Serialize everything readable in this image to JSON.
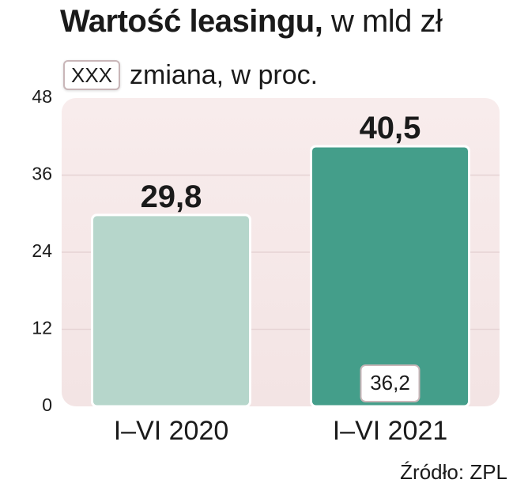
{
  "header": {
    "title_bold": "Wartość leasingu,",
    "title_rest": "w mld zł",
    "legend_box": "XXX",
    "legend_text": "zmiana, w proc."
  },
  "chart_data": {
    "type": "bar",
    "categories": [
      "I–VI 2020",
      "I–VI 2021"
    ],
    "values": [
      29.8,
      40.5
    ],
    "value_labels": [
      "29,8",
      "40,5"
    ],
    "change_labels": [
      null,
      "36,2"
    ],
    "ylim": [
      0,
      48
    ],
    "yticks": [
      0,
      12,
      24,
      36,
      48
    ],
    "grid": true,
    "colors": [
      "#b6d6cb",
      "#449e8a"
    ]
  },
  "footer": {
    "source": "Źródło: ZPL"
  },
  "colors": {
    "plot_bg_top": "#f8ecec",
    "plot_bg_bottom": "#f3e4e4",
    "bar_border": "#ffffff"
  }
}
